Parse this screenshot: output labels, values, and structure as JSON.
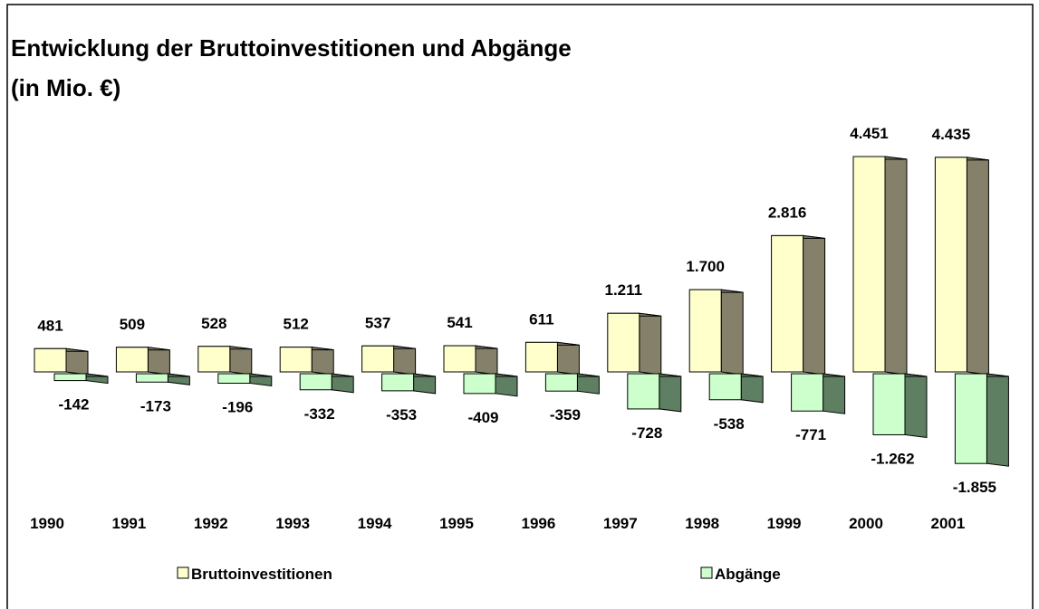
{
  "chart_data": {
    "type": "bar3d",
    "title": "Entwicklung der Bruttoinvestitionen und Abgänge",
    "subtitle": "(in Mio. €)",
    "categories": [
      "1990",
      "1991",
      "1992",
      "1993",
      "1994",
      "1995",
      "1996",
      "1997",
      "1998",
      "1999",
      "2000",
      "2001"
    ],
    "series": [
      {
        "name": "Bruttoinvestitionen",
        "color": "#ffffcc",
        "side_color": "#858069",
        "values": [
          481,
          509,
          528,
          512,
          537,
          541,
          611,
          1211,
          1700,
          2816,
          4451,
          4435
        ],
        "value_labels": [
          "481",
          "509",
          "528",
          "512",
          "537",
          "541",
          "611",
          "1.211",
          "1.700",
          "2.816",
          "4.451",
          "4.435"
        ]
      },
      {
        "name": "Abgänge",
        "color": "#ccffcc",
        "side_color": "#5f7f62",
        "values": [
          -142,
          -173,
          -196,
          -332,
          -353,
          -409,
          -359,
          -728,
          -538,
          -771,
          -1262,
          -1855
        ],
        "value_labels": [
          "-142",
          "-173",
          "-196",
          "-332",
          "-353",
          "-409",
          "-359",
          "-728",
          "-538",
          "-771",
          "-1.262",
          "-1.855"
        ]
      }
    ]
  }
}
